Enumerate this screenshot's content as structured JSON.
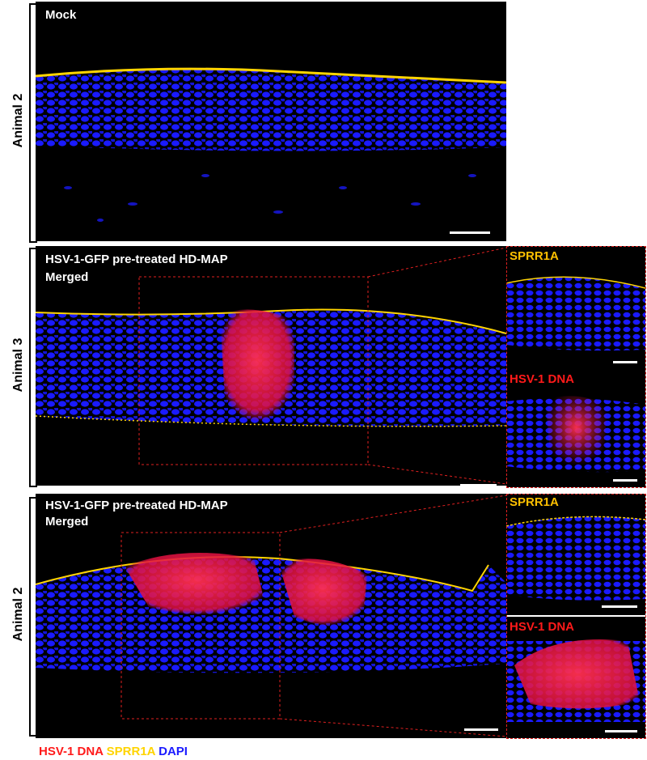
{
  "rows": [
    {
      "side_label": "Animal 2",
      "title": "Mock",
      "subtitle": ""
    },
    {
      "side_label": "Animal 3",
      "title": "HSV-1-GFP pre-treated HD-MAP",
      "subtitle": "Merged",
      "inset_top": "SPRR1A",
      "inset_bottom": "HSV-1 DNA"
    },
    {
      "side_label": "Animal 2",
      "title": "HSV-1-GFP pre-treated HD-MAP",
      "subtitle": "Merged",
      "inset_top": "SPRR1A",
      "inset_bottom": "HSV-1 DNA"
    }
  ],
  "legend": {
    "hsv": "HSV-1 DNA",
    "sprr": "SPRR1A",
    "dapi": "DAPI"
  },
  "colors": {
    "hsv": "#ff1a1a",
    "sprr": "#ffd400",
    "dapi": "#1a1aff",
    "inset_label_yellow": "#ffc000"
  }
}
